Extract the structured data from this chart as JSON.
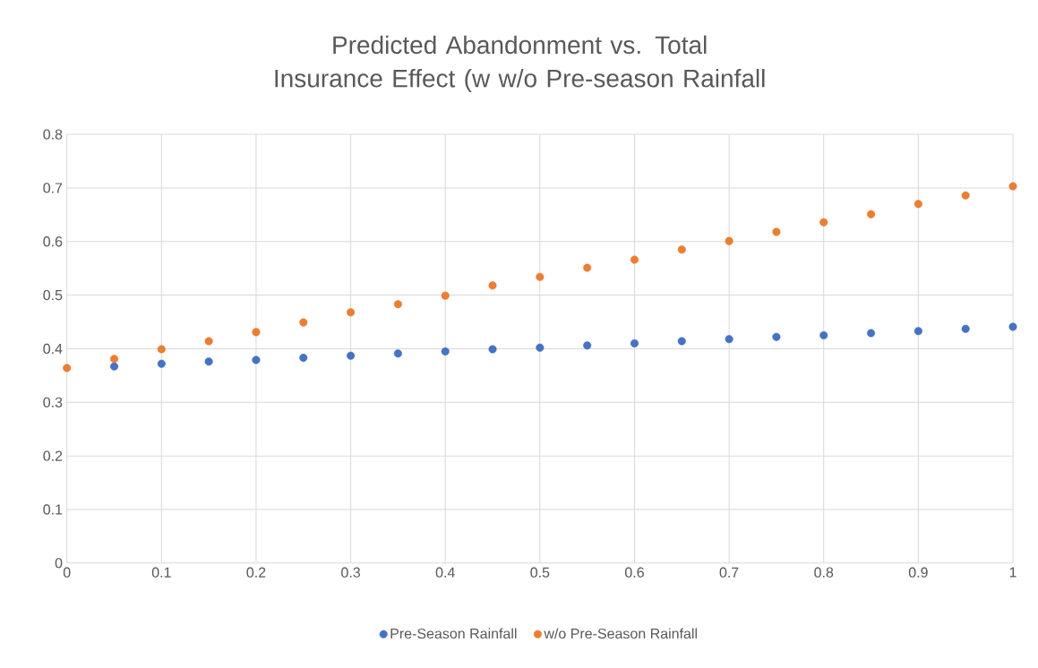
{
  "chart_data": {
    "type": "scatter",
    "title": "Predicted Abandonment vs. Total Insurance Effect (w w/o Pre-season Rainfall",
    "x": [
      0,
      0.05,
      0.1,
      0.15,
      0.2,
      0.25,
      0.3,
      0.35,
      0.4,
      0.45,
      0.5,
      0.55,
      0.6,
      0.65,
      0.7,
      0.75,
      0.8,
      0.85,
      0.9,
      0.95,
      1
    ],
    "series": [
      {
        "name": "Pre-Season Rainfall",
        "color": "#4472c4",
        "values": [
          null,
          0.367,
          0.372,
          0.376,
          0.379,
          0.383,
          0.387,
          0.391,
          0.395,
          0.399,
          0.402,
          0.406,
          0.41,
          0.414,
          0.418,
          0.422,
          0.425,
          0.429,
          0.433,
          0.437,
          0.441
        ]
      },
      {
        "name": "w/o Pre-Season Rainfall",
        "color": "#ed7d31",
        "values": [
          0.364,
          0.381,
          0.399,
          0.414,
          0.431,
          0.449,
          0.468,
          0.483,
          0.499,
          0.518,
          0.534,
          0.551,
          0.566,
          0.585,
          0.601,
          0.618,
          0.636,
          0.651,
          0.67,
          0.686,
          0.703
        ]
      }
    ],
    "xlim": [
      0,
      1
    ],
    "ylim": [
      0,
      0.8
    ],
    "xticks": [
      0,
      0.1,
      0.2,
      0.3,
      0.4,
      0.5,
      0.6,
      0.7,
      0.8,
      0.9,
      1
    ],
    "yticks": [
      0,
      0.1,
      0.2,
      0.3,
      0.4,
      0.5,
      0.6,
      0.7,
      0.8
    ],
    "grid": true,
    "legend": "bottom",
    "marker": "circle"
  }
}
